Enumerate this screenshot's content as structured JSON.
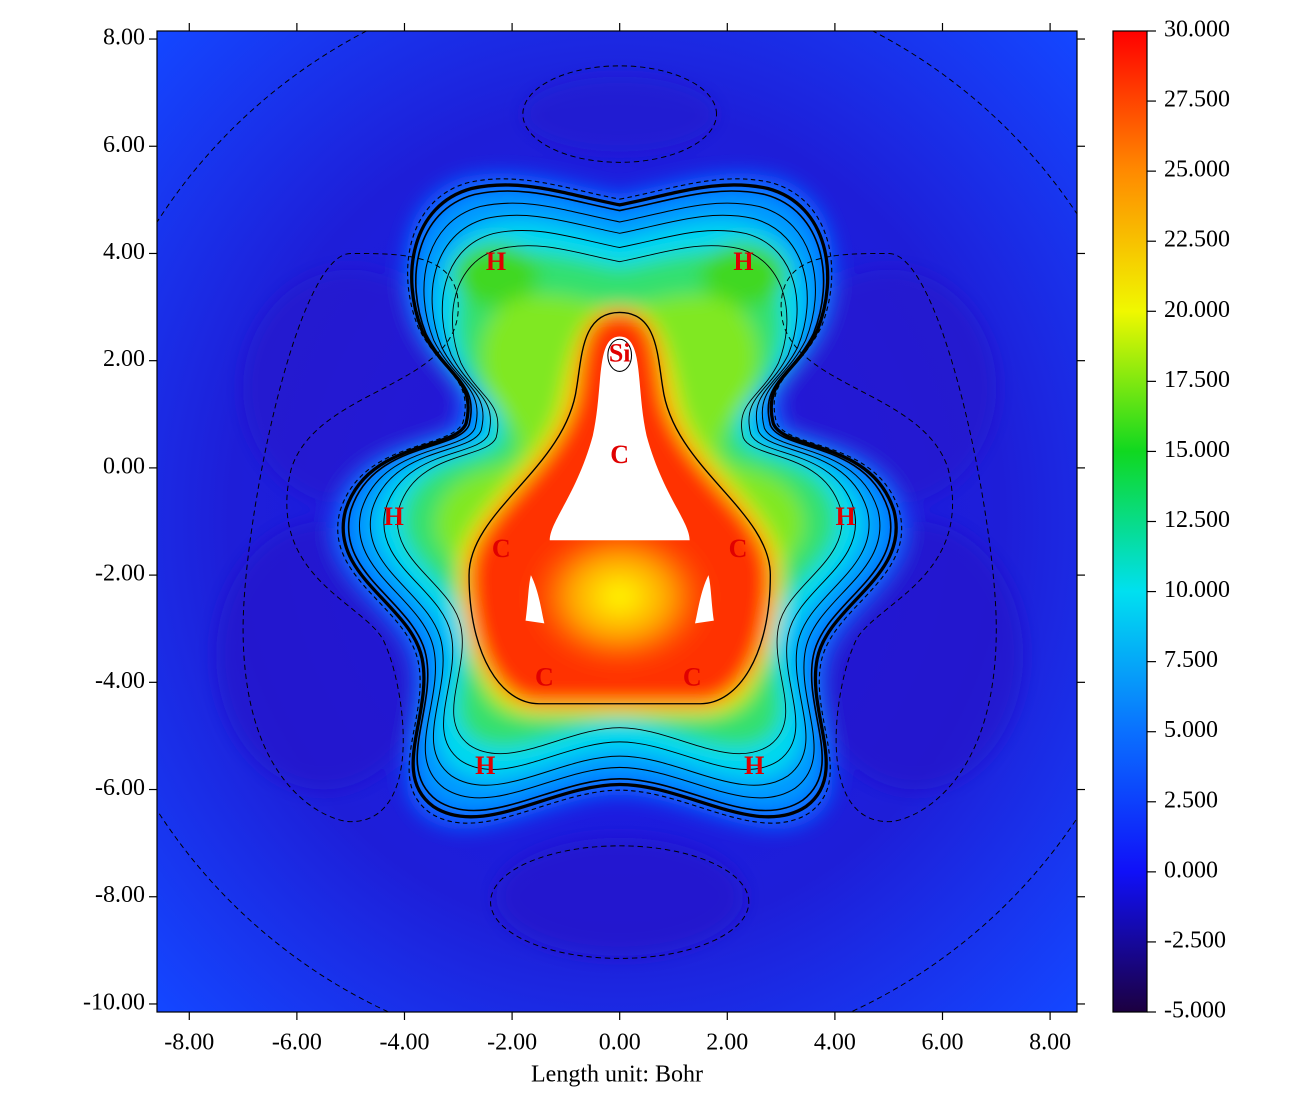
{
  "chart_data": {
    "type": "heatmap",
    "xlabel": "Length unit: Bohr",
    "xlim": [
      -8.6,
      8.5
    ],
    "ylim": [
      -10.15,
      8.15
    ],
    "xticks": [
      {
        "value": -8,
        "label": "-8.00"
      },
      {
        "value": -6,
        "label": "-6.00"
      },
      {
        "value": -4,
        "label": "-4.00"
      },
      {
        "value": -2,
        "label": "-2.00"
      },
      {
        "value": 0,
        "label": "0.00"
      },
      {
        "value": 2,
        "label": "2.00"
      },
      {
        "value": 4,
        "label": "4.00"
      },
      {
        "value": 6,
        "label": "6.00"
      },
      {
        "value": 8,
        "label": "8.00"
      }
    ],
    "yticks": [
      {
        "value": 8,
        "label": "8.00"
      },
      {
        "value": 6,
        "label": "6.00"
      },
      {
        "value": 4,
        "label": "4.00"
      },
      {
        "value": 2,
        "label": "2.00"
      },
      {
        "value": 0,
        "label": "0.00"
      },
      {
        "value": -2,
        "label": "-2.00"
      },
      {
        "value": -4,
        "label": "-4.00"
      },
      {
        "value": -6,
        "label": "-6.00"
      },
      {
        "value": -8,
        "label": "-8.00"
      },
      {
        "value": -10,
        "label": "-10.00"
      }
    ],
    "colorbar": {
      "lim": [
        -5,
        30
      ],
      "colors": [
        "#1c0040",
        "#1010f8",
        "#0a70ff",
        "#00e0f0",
        "#10d820",
        "#f0f800",
        "#ff8a00",
        "#ff0000"
      ],
      "ticks": [
        {
          "value": 30,
          "label": "30.000"
        },
        {
          "value": 27.5,
          "label": "27.500"
        },
        {
          "value": 25,
          "label": "25.000"
        },
        {
          "value": 22.5,
          "label": "22.500"
        },
        {
          "value": 20,
          "label": "20.000"
        },
        {
          "value": 17.5,
          "label": "17.500"
        },
        {
          "value": 15,
          "label": "15.000"
        },
        {
          "value": 12.5,
          "label": "12.500"
        },
        {
          "value": 10,
          "label": "10.000"
        },
        {
          "value": 7.5,
          "label": "7.500"
        },
        {
          "value": 5,
          "label": "5.000"
        },
        {
          "value": 2.5,
          "label": "2.500"
        },
        {
          "value": 0,
          "label": "0.000"
        },
        {
          "value": -2.5,
          "label": "-2.500"
        },
        {
          "value": -5,
          "label": "-5.000"
        }
      ]
    },
    "atoms": [
      {
        "label": "H",
        "x": -2.3,
        "y": 3.8
      },
      {
        "label": "H",
        "x": 2.3,
        "y": 3.8
      },
      {
        "label": "Si",
        "x": 0,
        "y": 2.1
      },
      {
        "label": "C",
        "x": 0,
        "y": 0.2
      },
      {
        "label": "H",
        "x": -4.2,
        "y": -0.95
      },
      {
        "label": "H",
        "x": 4.2,
        "y": -0.95
      },
      {
        "label": "C",
        "x": -2.2,
        "y": -1.55
      },
      {
        "label": "C",
        "x": 2.2,
        "y": -1.55
      },
      {
        "label": "C",
        "x": -1.4,
        "y": -3.95
      },
      {
        "label": "C",
        "x": 1.35,
        "y": -3.95
      },
      {
        "label": "H",
        "x": -2.5,
        "y": -5.6
      },
      {
        "label": "H",
        "x": 2.5,
        "y": -5.6
      }
    ]
  }
}
